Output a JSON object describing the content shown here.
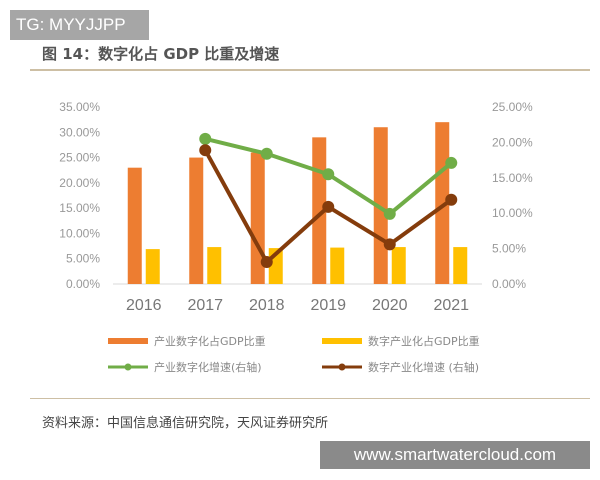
{
  "watermark_top": "TG: MYYJJPP",
  "watermark_bottom": "www.smartwatercloud.com",
  "source": "资料来源：中国信息通信研究院，天风证券研究所",
  "chart_data": {
    "type": "bar+line",
    "title": "图 14：数字化占 GDP 比重及增速",
    "categories": [
      "2016",
      "2017",
      "2018",
      "2019",
      "2020",
      "2021"
    ],
    "left_axis": {
      "range": [
        0,
        35
      ],
      "ticks": [
        "0.00%",
        "5.00%",
        "10.00%",
        "15.00%",
        "20.00%",
        "25.00%",
        "30.00%",
        "35.00%"
      ]
    },
    "right_axis": {
      "range": [
        0,
        25
      ],
      "ticks": [
        "0.00%",
        "5.00%",
        "10.00%",
        "15.00%",
        "20.00%",
        "25.00%"
      ]
    },
    "series": [
      {
        "name": "产业数字化占GDP比重",
        "type": "bar",
        "axis": "left",
        "color": "#ed7d31",
        "values": [
          23.0,
          25.0,
          26.0,
          29.0,
          31.0,
          32.0
        ]
      },
      {
        "name": "数字产业化占GDP比重",
        "type": "bar",
        "axis": "left",
        "color": "#ffc000",
        "values": [
          6.9,
          7.3,
          7.1,
          7.2,
          7.3,
          7.3
        ]
      },
      {
        "name": "产业数字化增速(右轴)",
        "type": "line",
        "axis": "right",
        "color": "#70ad47",
        "values": [
          null,
          20.5,
          18.4,
          15.5,
          9.9,
          17.1
        ]
      },
      {
        "name": "数字产业化增速 (右轴)",
        "type": "line",
        "axis": "right",
        "color": "#843c0c",
        "values": [
          null,
          18.9,
          3.1,
          10.9,
          5.6,
          11.9
        ]
      }
    ],
    "legend_position": "bottom",
    "grid": false
  }
}
